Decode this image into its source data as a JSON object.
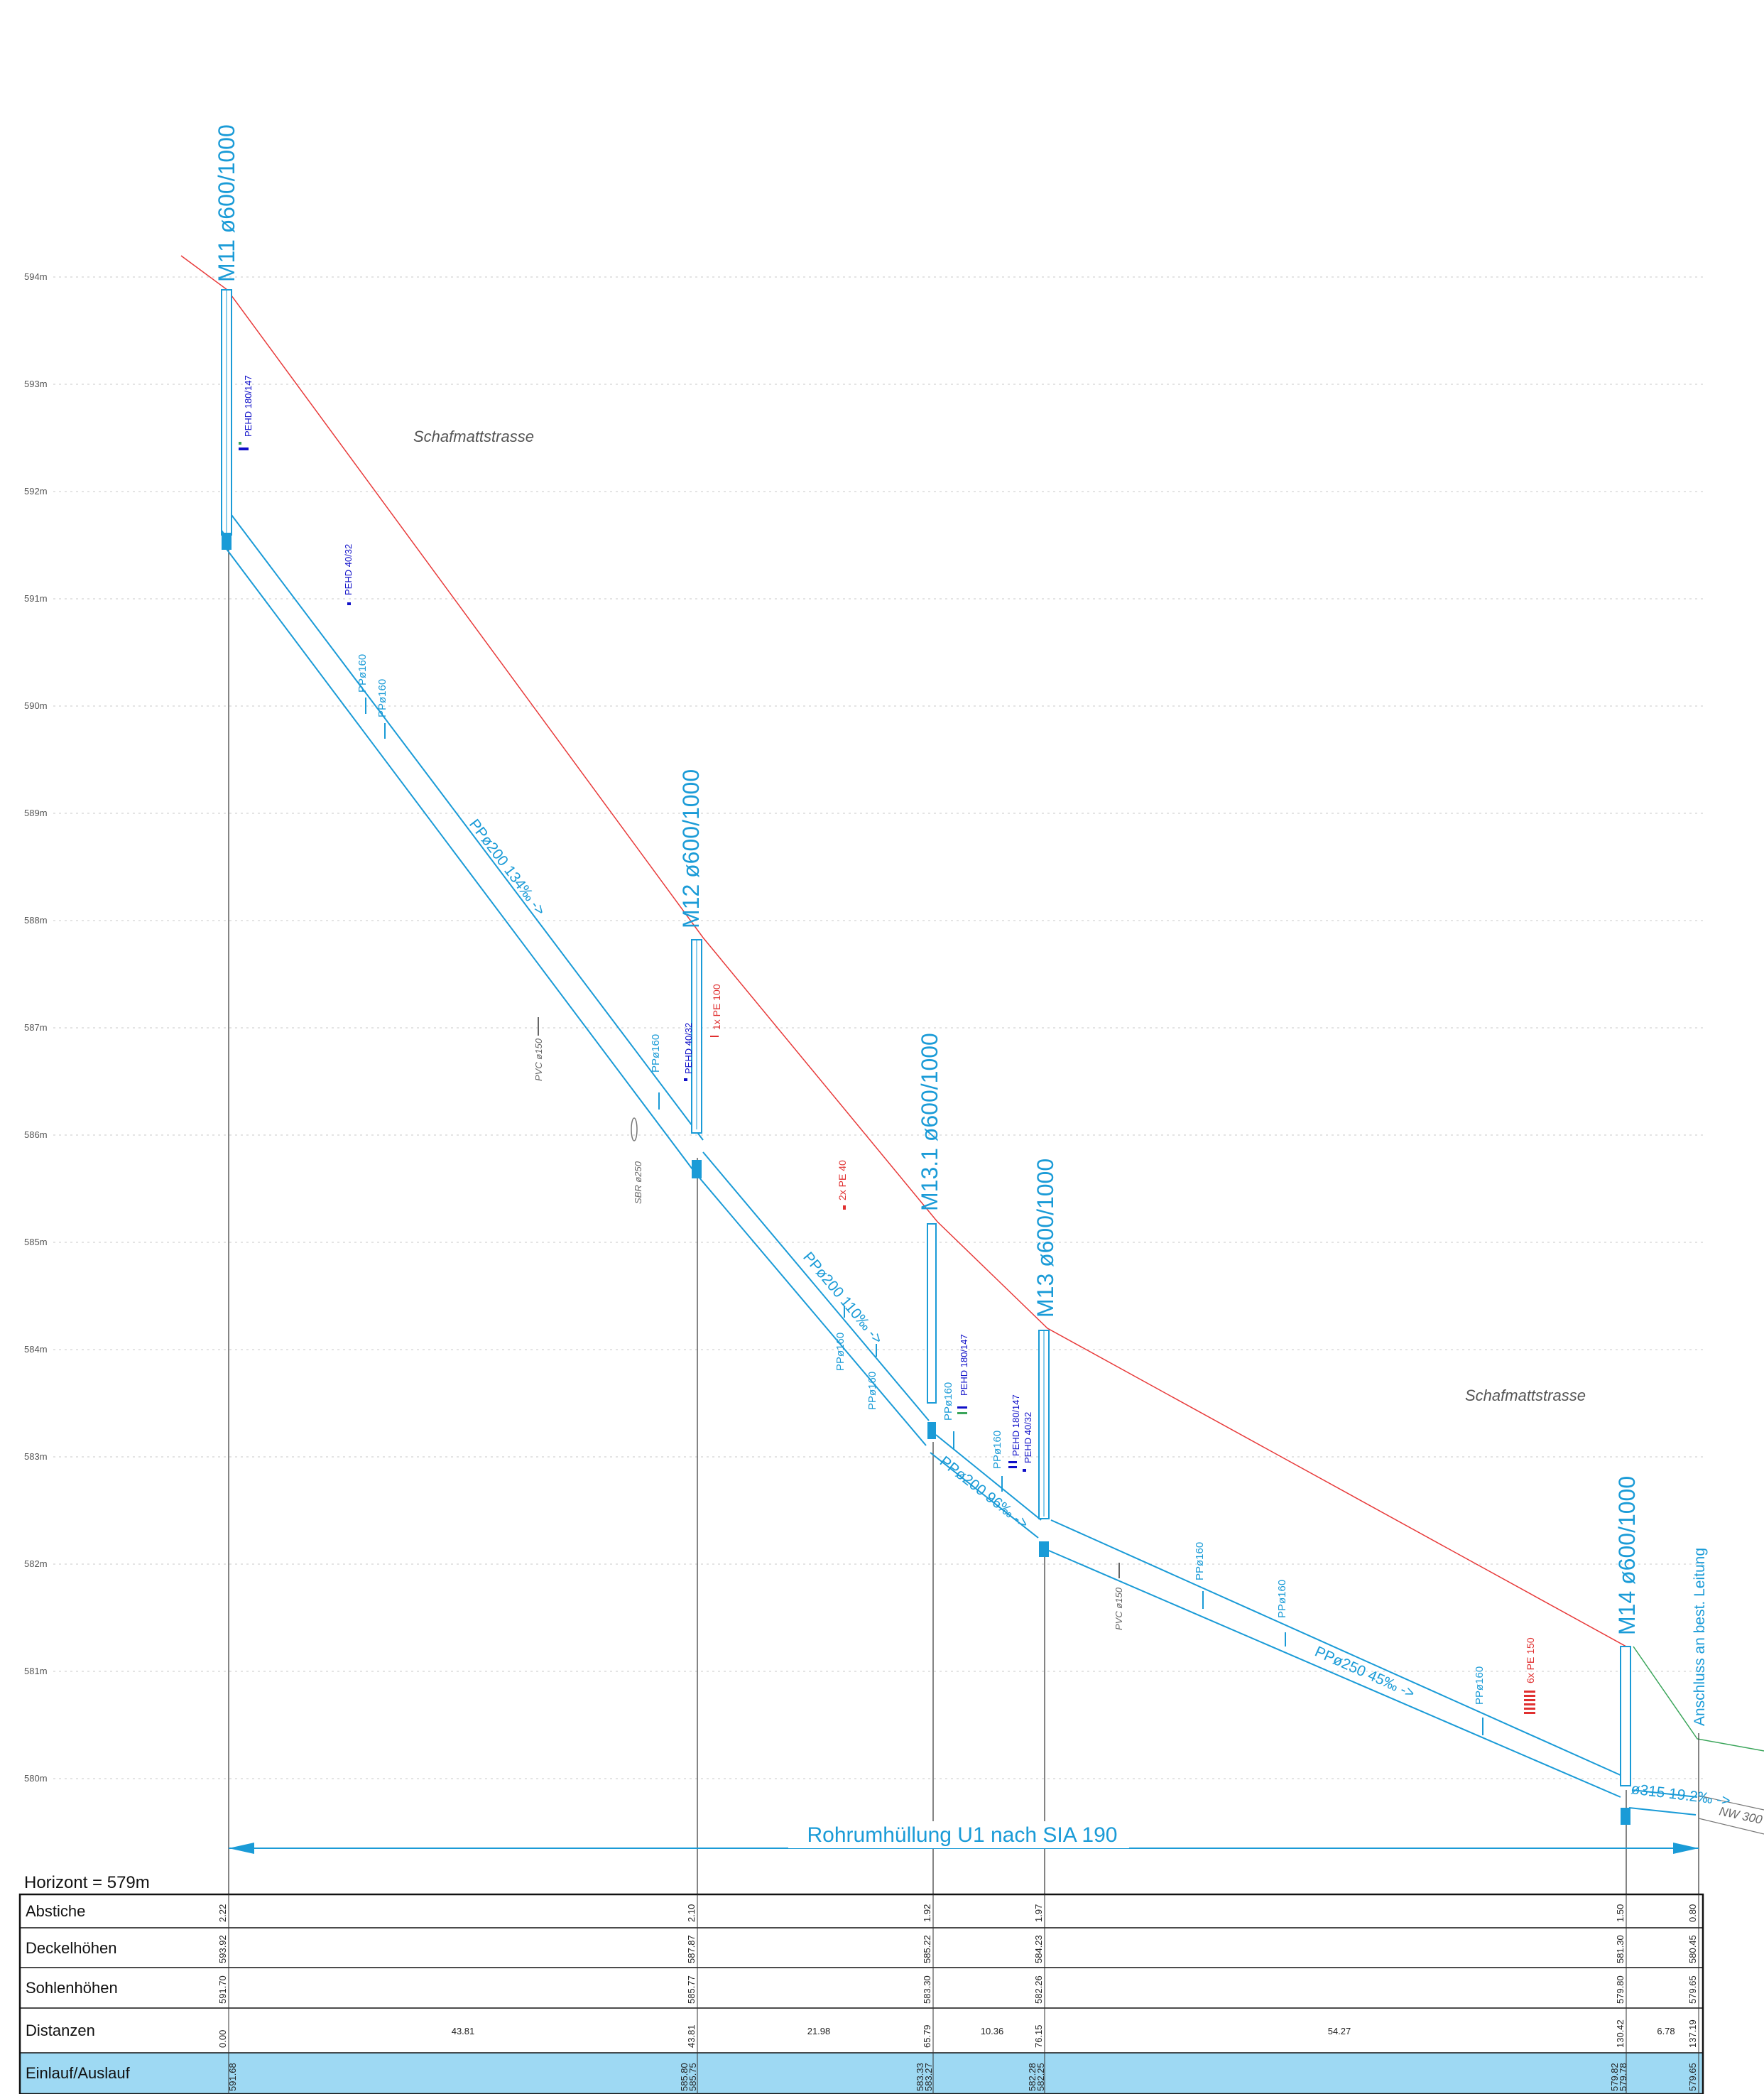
{
  "elevation_axis": {
    "unit": "m",
    "labels": [
      "594m",
      "593m",
      "592m",
      "591m",
      "590m",
      "589m",
      "588m",
      "587m",
      "586m",
      "585m",
      "584m",
      "583m",
      "582m",
      "581m",
      "580m"
    ],
    "values": [
      594,
      593,
      592,
      591,
      590,
      589,
      588,
      587,
      586,
      585,
      584,
      583,
      582,
      581,
      580
    ]
  },
  "streets": [
    "Schafmattstrasse",
    "Schafmattstrasse"
  ],
  "manholes": [
    {
      "label": "M11 ø600/1000",
      "dist": 0.0,
      "cover": 593.92,
      "invert": 591.7
    },
    {
      "label": "M12 ø600/1000",
      "dist": 43.81,
      "cover": 587.87,
      "invert": 585.77
    },
    {
      "label": "M13.1 ø600/1000",
      "dist": 65.79,
      "cover": 585.22,
      "invert": 583.3
    },
    {
      "label": "M13 ø600/1000",
      "dist": 76.15,
      "cover": 584.23,
      "invert": 582.26
    },
    {
      "label": "M14 ø600/1000",
      "dist": 130.42,
      "cover": 581.3,
      "invert": 579.8
    }
  ],
  "pipes": [
    {
      "label": "PPø200 134‰ ->"
    },
    {
      "label": "PPø200 110‰ ->"
    },
    {
      "label": "PPø200 96‰ ->"
    },
    {
      "label": "PPø250 45‰ ->"
    },
    {
      "label": "ø315 19.2‰ ->"
    }
  ],
  "existing": {
    "connection": "Anschluss an best. Leitung",
    "nw": "NW 300"
  },
  "crossings": {
    "pehd_180_147": "PEHD 180/147",
    "pehd_40_32": "PEHD 40/32",
    "pp_160": "PPø160",
    "pe_100": "1x PE 100",
    "pe_40": "2x PE 40",
    "pe_150": "6x PE 150",
    "pvc_150": "PVC ø150",
    "sbr_250": "SBR ø250"
  },
  "bedding_note": "Rohrumhüllung  U1 nach SIA 190",
  "horizont": "Horizont =  579m",
  "table": {
    "rows": [
      "Abstiche",
      "Deckelhöhen",
      "Sohlenhöhen",
      "Distanzen",
      "Einlauf/Auslauf"
    ],
    "abstiche": [
      "2.22",
      "2.10",
      "1.92",
      "1.97",
      "1.50",
      "0.80"
    ],
    "deckelhoehen": [
      "593.92",
      "587.87",
      "585.22",
      "584.23",
      "581.30",
      "580.45"
    ],
    "sohlenhoehen": [
      "591.70",
      "585.77",
      "583.30",
      "582.26",
      "579.80",
      "579.65"
    ],
    "distanzen_station": [
      "0.00",
      "43.81",
      "65.79",
      "76.15",
      "130.42",
      "137.19"
    ],
    "distanzen_segment": [
      "43.81",
      "21.98",
      "10.36",
      "54.27",
      "6.78"
    ],
    "einlauf_auslauf": [
      "591.68",
      "585.80",
      "585.75",
      "583.33",
      "583.27",
      "582.28",
      "582.25",
      "579.82",
      "579.78",
      "579.65"
    ]
  },
  "colors": {
    "pipe": "#1a9bd7",
    "terrain": "#e83a3a",
    "existing_terrain": "#3aa55a",
    "crossing_blue": "#1010c8",
    "crossing_red": "#e03030",
    "table_highlight": "#9ed9f3"
  }
}
